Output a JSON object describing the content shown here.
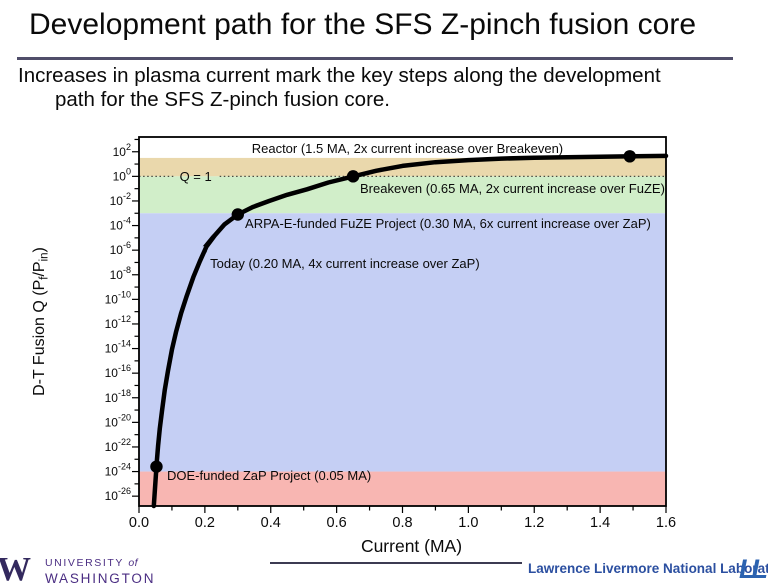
{
  "slide": {
    "title": "Development path for the SFS Z-pinch fusion core",
    "subtitle_line1": "Increases in plasma current mark the key steps along the development",
    "subtitle_line2": "path for the SFS Z-pinch fusion core."
  },
  "footer": {
    "uw_w": "W",
    "uw_line1_caps": "UNIVERSITY ",
    "uw_line1_of": "of",
    "uw_line2": "WASHINGTON",
    "llnl_name": "Lawrence Livermore National Laboratory",
    "llnl_logo_text": "LL",
    "uw_purple": "#4b2e83",
    "llnl_blue": "#2b4fa0"
  },
  "chart_data": {
    "type": "line",
    "title": "",
    "xlabel": "Current (MA)",
    "ylabel_parts": {
      "pre": "D-T Fusion Q (P",
      "sub1": "f",
      "mid": "/P",
      "sub2": "in",
      "post": ")"
    },
    "xlim": [
      0,
      1.6
    ],
    "x_major_step": 0.2,
    "x_minor_step": 0.1,
    "x_tick_labels": [
      "0.0",
      "0.2",
      "0.4",
      "0.6",
      "0.8",
      "1.0",
      "1.2",
      "1.4",
      "1.6"
    ],
    "ylog_exp_range": [
      -26.8,
      3.2
    ],
    "y_label_exponents": [
      2,
      0,
      -2,
      -4,
      -6,
      -8,
      -10,
      -12,
      -14,
      -16,
      -18,
      -20,
      -22,
      -24,
      -26
    ],
    "grid": false,
    "legend": "none",
    "bands": [
      {
        "name": "reactor-region",
        "color": "#ead8ac",
        "from_exp": 0,
        "to_exp": 1.5
      },
      {
        "name": "breakeven-region",
        "color": "#d1eec9",
        "from_exp": -3,
        "to_exp": 0
      },
      {
        "name": "experiment-region",
        "color": "#c5cff4",
        "from_exp": -24,
        "to_exp": -3
      },
      {
        "name": "zap-region",
        "color": "#f8b6b2",
        "from_exp": -26.8,
        "to_exp": -24
      }
    ],
    "q1_line": {
      "label": "Q = 1",
      "exp": 0,
      "color": "#4a4a40",
      "gap_I": [
        0.112,
        0.245
      ],
      "label_I": 0.172
    },
    "curve": {
      "color": "#000000",
      "width": 4.5,
      "points_I_exp": [
        [
          0.045,
          -26.8
        ],
        [
          0.048,
          -25.6
        ],
        [
          0.051,
          -24.4
        ],
        [
          0.054,
          -23.2
        ],
        [
          0.058,
          -21.9
        ],
        [
          0.063,
          -20.5
        ],
        [
          0.07,
          -19.0
        ],
        [
          0.078,
          -17.4
        ],
        [
          0.088,
          -15.8
        ],
        [
          0.1,
          -14.1
        ],
        [
          0.113,
          -12.6
        ],
        [
          0.128,
          -11.1
        ],
        [
          0.145,
          -9.7
        ],
        [
          0.165,
          -8.2
        ],
        [
          0.185,
          -6.9
        ],
        [
          0.205,
          -5.7
        ],
        [
          0.23,
          -4.8
        ],
        [
          0.26,
          -3.9
        ],
        [
          0.3,
          -3.1
        ],
        [
          0.345,
          -2.5
        ],
        [
          0.395,
          -2.0
        ],
        [
          0.45,
          -1.5
        ],
        [
          0.51,
          -1.05
        ],
        [
          0.575,
          -0.5
        ],
        [
          0.65,
          0
        ],
        [
          0.72,
          0.45
        ],
        [
          0.8,
          0.85
        ],
        [
          0.9,
          1.15
        ],
        [
          1.0,
          1.32
        ],
        [
          1.1,
          1.44
        ],
        [
          1.2,
          1.51
        ],
        [
          1.3,
          1.56
        ],
        [
          1.4,
          1.6
        ],
        [
          1.5,
          1.63
        ],
        [
          1.6,
          1.66
        ]
      ]
    },
    "milestones": [
      {
        "id": "zap",
        "marker": "dot",
        "I": 0.053,
        "exp": -23.6,
        "label": "DOE-funded ZaP Project (0.05 MA)",
        "label_I": 0.085,
        "label_exp": -24.7,
        "align": "start"
      },
      {
        "id": "today",
        "marker": "bolt",
        "I": 0.2,
        "exp": -5.9,
        "label": "Today (0.20 MA, 4x current increase over ZaP)",
        "label_I": 0.216,
        "label_exp": -7.45,
        "align": "start"
      },
      {
        "id": "fuze",
        "marker": "dot",
        "I": 0.3,
        "exp": -3.1,
        "label": "ARPA-E-funded FuZE Project (0.30 MA, 6x current increase over ZaP)",
        "label_I": 0.322,
        "label_exp": -4.2,
        "align": "start"
      },
      {
        "id": "breakeven",
        "marker": "dot",
        "I": 0.65,
        "exp": 0,
        "label": "Breakeven (0.65 MA, 2x current increase over FuZE)",
        "label_I": 0.671,
        "label_exp": -1.35,
        "align": "start"
      },
      {
        "id": "reactor",
        "marker": "dot",
        "I": 1.49,
        "exp": 1.63,
        "label": "Reactor (1.5 MA, 2x current increase over Breakeven)",
        "label_I": 0.815,
        "label_exp": 1.9,
        "align": "middle"
      }
    ]
  }
}
